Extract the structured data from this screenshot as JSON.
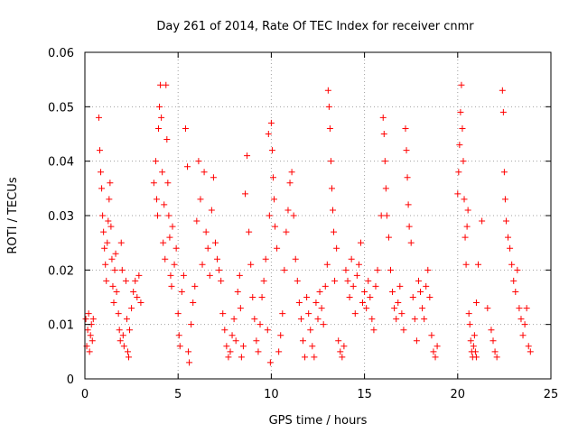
{
  "chart_data": {
    "type": "scatter",
    "title": "Day 261 of 2014, Rate Of TEC Index for receiver cnmr",
    "xlabel": "GPS time / hours",
    "ylabel": "ROTI / TECUs",
    "xlim": [
      0,
      25
    ],
    "ylim": [
      0,
      0.06
    ],
    "x_ticks": [
      "0",
      "5",
      "10",
      "15",
      "20",
      "25"
    ],
    "y_ticks": [
      "0",
      "0.01",
      "0.02",
      "0.03",
      "0.04",
      "0.05",
      "0.06"
    ],
    "x_tick_values": [
      0,
      5,
      10,
      15,
      20,
      25
    ],
    "y_tick_values": [
      0,
      0.01,
      0.02,
      0.03,
      0.04,
      0.05,
      0.06
    ],
    "grid": true,
    "marker": "+",
    "series_color": "#ff0000",
    "series": [
      {
        "name": "ROTI",
        "points": [
          [
            0.05,
            0.011
          ],
          [
            0.1,
            0.006
          ],
          [
            0.15,
            0.009
          ],
          [
            0.2,
            0.012
          ],
          [
            0.25,
            0.005
          ],
          [
            0.3,
            0.008
          ],
          [
            0.35,
            0.01
          ],
          [
            0.4,
            0.007
          ],
          [
            0.45,
            0.011
          ],
          [
            0.75,
            0.048
          ],
          [
            0.8,
            0.042
          ],
          [
            0.85,
            0.038
          ],
          [
            0.9,
            0.035
          ],
          [
            0.95,
            0.03
          ],
          [
            1.0,
            0.027
          ],
          [
            1.05,
            0.024
          ],
          [
            1.1,
            0.021
          ],
          [
            1.15,
            0.018
          ],
          [
            1.2,
            0.025
          ],
          [
            1.25,
            0.029
          ],
          [
            1.3,
            0.033
          ],
          [
            1.35,
            0.036
          ],
          [
            1.4,
            0.028
          ],
          [
            1.45,
            0.022
          ],
          [
            1.5,
            0.017
          ],
          [
            1.55,
            0.014
          ],
          [
            1.6,
            0.02
          ],
          [
            1.65,
            0.023
          ],
          [
            1.7,
            0.016
          ],
          [
            1.8,
            0.012
          ],
          [
            1.85,
            0.009
          ],
          [
            1.9,
            0.007
          ],
          [
            1.95,
            0.025
          ],
          [
            2.0,
            0.02
          ],
          [
            2.05,
            0.008
          ],
          [
            2.1,
            0.006
          ],
          [
            2.2,
            0.018
          ],
          [
            2.25,
            0.011
          ],
          [
            2.3,
            0.005
          ],
          [
            2.35,
            0.004
          ],
          [
            2.4,
            0.009
          ],
          [
            2.5,
            0.013
          ],
          [
            2.6,
            0.016
          ],
          [
            2.7,
            0.018
          ],
          [
            2.8,
            0.015
          ],
          [
            2.9,
            0.019
          ],
          [
            3.0,
            0.014
          ],
          [
            3.7,
            0.036
          ],
          [
            3.8,
            0.04
          ],
          [
            3.85,
            0.033
          ],
          [
            3.9,
            0.03
          ],
          [
            3.95,
            0.046
          ],
          [
            4.0,
            0.05
          ],
          [
            4.05,
            0.054
          ],
          [
            4.1,
            0.048
          ],
          [
            4.15,
            0.038
          ],
          [
            4.2,
            0.025
          ],
          [
            4.25,
            0.032
          ],
          [
            4.3,
            0.022
          ],
          [
            4.35,
            0.054
          ],
          [
            4.4,
            0.044
          ],
          [
            4.45,
            0.036
          ],
          [
            4.5,
            0.03
          ],
          [
            4.55,
            0.026
          ],
          [
            4.6,
            0.019
          ],
          [
            4.65,
            0.017
          ],
          [
            4.7,
            0.028
          ],
          [
            4.8,
            0.021
          ],
          [
            4.9,
            0.024
          ],
          [
            5.0,
            0.012
          ],
          [
            5.05,
            0.008
          ],
          [
            5.1,
            0.006
          ],
          [
            5.2,
            0.016
          ],
          [
            5.3,
            0.019
          ],
          [
            5.4,
            0.046
          ],
          [
            5.5,
            0.039
          ],
          [
            5.55,
            0.005
          ],
          [
            5.6,
            0.003
          ],
          [
            5.7,
            0.01
          ],
          [
            5.8,
            0.014
          ],
          [
            5.9,
            0.017
          ],
          [
            6.0,
            0.029
          ],
          [
            6.1,
            0.04
          ],
          [
            6.2,
            0.033
          ],
          [
            6.3,
            0.021
          ],
          [
            6.4,
            0.038
          ],
          [
            6.5,
            0.027
          ],
          [
            6.6,
            0.024
          ],
          [
            6.7,
            0.019
          ],
          [
            6.8,
            0.031
          ],
          [
            6.9,
            0.037
          ],
          [
            7.0,
            0.025
          ],
          [
            7.1,
            0.022
          ],
          [
            7.2,
            0.02
          ],
          [
            7.3,
            0.018
          ],
          [
            7.4,
            0.012
          ],
          [
            7.5,
            0.009
          ],
          [
            7.6,
            0.006
          ],
          [
            7.7,
            0.004
          ],
          [
            7.8,
            0.005
          ],
          [
            7.9,
            0.008
          ],
          [
            8.0,
            0.011
          ],
          [
            8.1,
            0.007
          ],
          [
            8.2,
            0.016
          ],
          [
            8.3,
            0.019
          ],
          [
            8.35,
            0.013
          ],
          [
            8.4,
            0.004
          ],
          [
            8.5,
            0.006
          ],
          [
            8.6,
            0.034
          ],
          [
            8.7,
            0.041
          ],
          [
            8.8,
            0.027
          ],
          [
            8.9,
            0.021
          ],
          [
            9.0,
            0.015
          ],
          [
            9.1,
            0.011
          ],
          [
            9.2,
            0.007
          ],
          [
            9.3,
            0.005
          ],
          [
            9.4,
            0.01
          ],
          [
            9.5,
            0.015
          ],
          [
            9.6,
            0.018
          ],
          [
            9.7,
            0.022
          ],
          [
            9.8,
            0.009
          ],
          [
            9.85,
            0.045
          ],
          [
            9.9,
            0.03
          ],
          [
            9.95,
            0.003
          ],
          [
            10.0,
            0.047
          ],
          [
            10.05,
            0.042
          ],
          [
            10.1,
            0.037
          ],
          [
            10.15,
            0.033
          ],
          [
            10.2,
            0.028
          ],
          [
            10.3,
            0.024
          ],
          [
            10.4,
            0.005
          ],
          [
            10.5,
            0.008
          ],
          [
            10.6,
            0.012
          ],
          [
            10.7,
            0.02
          ],
          [
            10.8,
            0.027
          ],
          [
            10.9,
            0.031
          ],
          [
            11.0,
            0.036
          ],
          [
            11.1,
            0.038
          ],
          [
            11.2,
            0.03
          ],
          [
            11.3,
            0.022
          ],
          [
            11.4,
            0.018
          ],
          [
            11.5,
            0.014
          ],
          [
            11.6,
            0.011
          ],
          [
            11.7,
            0.007
          ],
          [
            11.8,
            0.004
          ],
          [
            11.9,
            0.015
          ],
          [
            12.0,
            0.012
          ],
          [
            12.1,
            0.009
          ],
          [
            12.2,
            0.006
          ],
          [
            12.3,
            0.004
          ],
          [
            12.4,
            0.014
          ],
          [
            12.5,
            0.011
          ],
          [
            12.6,
            0.016
          ],
          [
            12.7,
            0.013
          ],
          [
            12.8,
            0.01
          ],
          [
            12.9,
            0.017
          ],
          [
            13.0,
            0.021
          ],
          [
            13.05,
            0.053
          ],
          [
            13.1,
            0.05
          ],
          [
            13.15,
            0.046
          ],
          [
            13.2,
            0.04
          ],
          [
            13.25,
            0.035
          ],
          [
            13.3,
            0.031
          ],
          [
            13.35,
            0.027
          ],
          [
            13.4,
            0.018
          ],
          [
            13.5,
            0.024
          ],
          [
            13.6,
            0.007
          ],
          [
            13.7,
            0.005
          ],
          [
            13.8,
            0.004
          ],
          [
            13.9,
            0.006
          ],
          [
            14.0,
            0.02
          ],
          [
            14.1,
            0.018
          ],
          [
            14.2,
            0.015
          ],
          [
            14.3,
            0.022
          ],
          [
            14.4,
            0.017
          ],
          [
            14.5,
            0.012
          ],
          [
            14.6,
            0.019
          ],
          [
            14.7,
            0.021
          ],
          [
            14.8,
            0.025
          ],
          [
            14.9,
            0.014
          ],
          [
            15.0,
            0.016
          ],
          [
            15.1,
            0.013
          ],
          [
            15.2,
            0.018
          ],
          [
            15.3,
            0.015
          ],
          [
            15.4,
            0.011
          ],
          [
            15.5,
            0.009
          ],
          [
            15.6,
            0.017
          ],
          [
            15.7,
            0.02
          ],
          [
            15.9,
            0.03
          ],
          [
            16.0,
            0.048
          ],
          [
            16.05,
            0.045
          ],
          [
            16.1,
            0.04
          ],
          [
            16.15,
            0.035
          ],
          [
            16.2,
            0.03
          ],
          [
            16.3,
            0.026
          ],
          [
            16.4,
            0.02
          ],
          [
            16.5,
            0.016
          ],
          [
            16.6,
            0.013
          ],
          [
            16.7,
            0.011
          ],
          [
            16.8,
            0.014
          ],
          [
            16.9,
            0.017
          ],
          [
            17.0,
            0.012
          ],
          [
            17.1,
            0.009
          ],
          [
            17.2,
            0.046
          ],
          [
            17.25,
            0.042
          ],
          [
            17.3,
            0.037
          ],
          [
            17.35,
            0.032
          ],
          [
            17.4,
            0.028
          ],
          [
            17.5,
            0.025
          ],
          [
            17.6,
            0.015
          ],
          [
            17.7,
            0.011
          ],
          [
            17.8,
            0.007
          ],
          [
            17.9,
            0.018
          ],
          [
            18.0,
            0.016
          ],
          [
            18.1,
            0.013
          ],
          [
            18.2,
            0.011
          ],
          [
            18.3,
            0.017
          ],
          [
            18.4,
            0.02
          ],
          [
            18.5,
            0.015
          ],
          [
            18.6,
            0.008
          ],
          [
            18.7,
            0.005
          ],
          [
            18.8,
            0.004
          ],
          [
            18.9,
            0.006
          ],
          [
            20.0,
            0.034
          ],
          [
            20.05,
            0.038
          ],
          [
            20.1,
            0.043
          ],
          [
            20.15,
            0.049
          ],
          [
            20.2,
            0.054
          ],
          [
            20.25,
            0.046
          ],
          [
            20.3,
            0.04
          ],
          [
            20.35,
            0.033
          ],
          [
            20.4,
            0.026
          ],
          [
            20.45,
            0.021
          ],
          [
            20.5,
            0.028
          ],
          [
            20.55,
            0.031
          ],
          [
            20.6,
            0.012
          ],
          [
            20.65,
            0.01
          ],
          [
            20.7,
            0.007
          ],
          [
            20.75,
            0.005
          ],
          [
            20.8,
            0.004
          ],
          [
            20.85,
            0.006
          ],
          [
            20.9,
            0.008
          ],
          [
            20.95,
            0.005
          ],
          [
            21.0,
            0.004
          ],
          [
            21.0,
            0.014
          ],
          [
            21.1,
            0.021
          ],
          [
            21.3,
            0.029
          ],
          [
            21.6,
            0.013
          ],
          [
            21.8,
            0.009
          ],
          [
            21.9,
            0.007
          ],
          [
            22.0,
            0.005
          ],
          [
            22.1,
            0.004
          ],
          [
            22.4,
            0.053
          ],
          [
            22.45,
            0.049
          ],
          [
            22.5,
            0.038
          ],
          [
            22.55,
            0.033
          ],
          [
            22.6,
            0.029
          ],
          [
            22.7,
            0.026
          ],
          [
            22.8,
            0.024
          ],
          [
            22.9,
            0.021
          ],
          [
            23.0,
            0.018
          ],
          [
            23.1,
            0.016
          ],
          [
            23.2,
            0.02
          ],
          [
            23.3,
            0.013
          ],
          [
            23.4,
            0.011
          ],
          [
            23.5,
            0.008
          ],
          [
            23.6,
            0.01
          ],
          [
            23.7,
            0.013
          ],
          [
            23.8,
            0.006
          ],
          [
            23.9,
            0.005
          ]
        ]
      }
    ]
  }
}
